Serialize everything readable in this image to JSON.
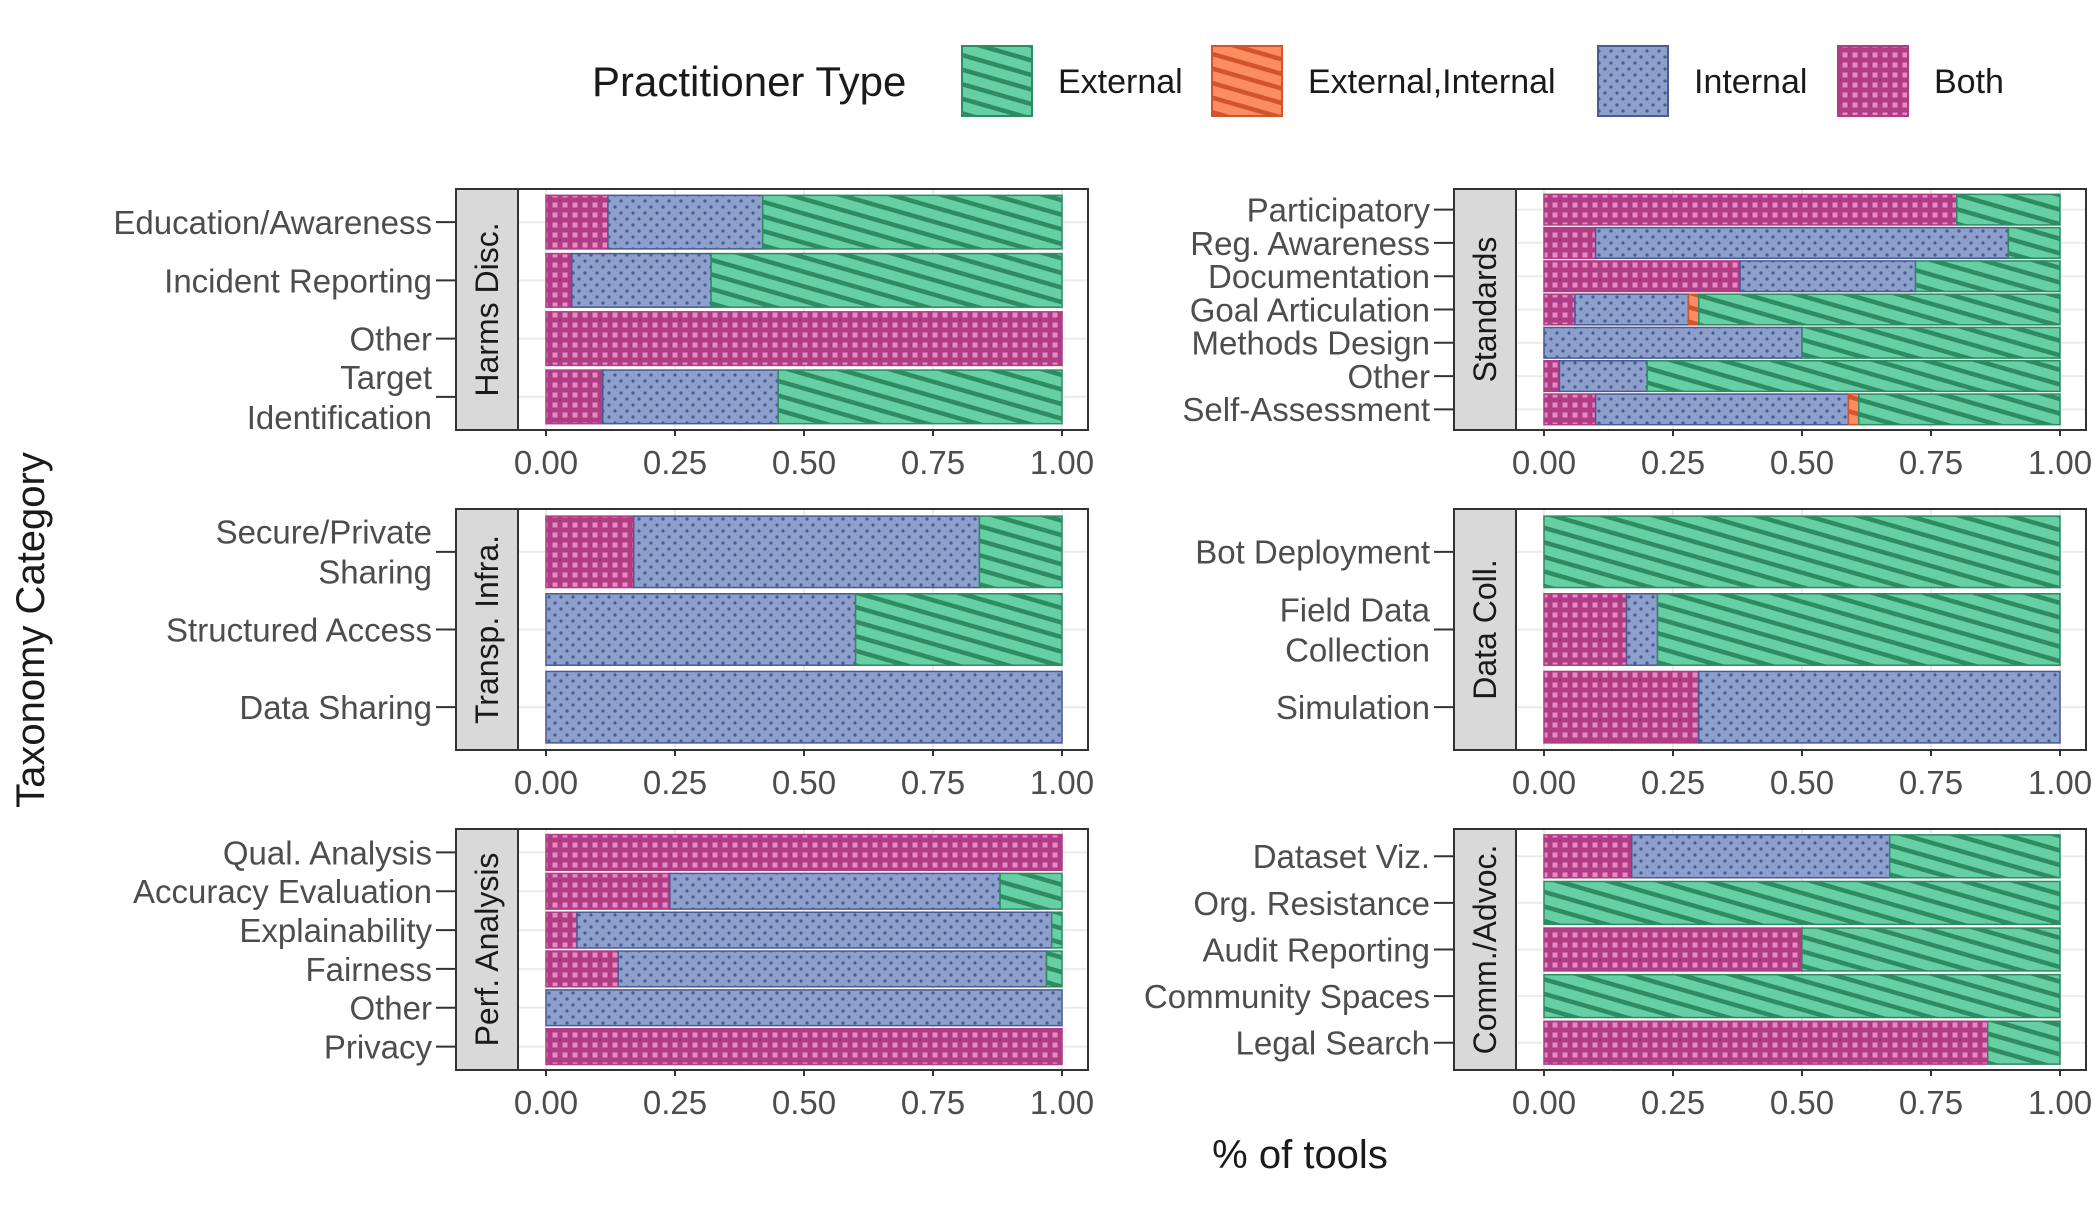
{
  "legend": {
    "title": "Practitioner Type",
    "position": "top",
    "items": [
      {
        "key": "external",
        "label": "External",
        "color": "#66cfa3",
        "pattern": "stripes",
        "pattern_color": "#2e8b62"
      },
      {
        "key": "ext_int",
        "label": "External,Internal",
        "color": "#fc8d62",
        "pattern": "stripes",
        "pattern_color": "#d1542a"
      },
      {
        "key": "internal",
        "label": "Internal",
        "color": "#8da0cb",
        "pattern": "dots",
        "pattern_color": "#4a5a95"
      },
      {
        "key": "both",
        "label": "Both",
        "color": "#e78ac3",
        "pattern": "grid",
        "pattern_color": "#b03c84"
      }
    ]
  },
  "axes": {
    "xlabel": "% of tools",
    "ylabel": "Taxonomy Category",
    "xticks": [
      "0.00",
      "0.25",
      "0.50",
      "0.75",
      "1.00"
    ]
  },
  "chart_data": [
    {
      "type": "bar",
      "stacked": true,
      "orientation": "horizontal",
      "facet": "Harms Disc.",
      "xlim": [
        0,
        1
      ],
      "categories": [
        [
          "Education/Awareness"
        ],
        [
          "Incident Reporting"
        ],
        [
          "Other"
        ],
        [
          "Target",
          "Identification"
        ]
      ],
      "series": [
        {
          "key": "both",
          "values": [
            0.12,
            0.05,
            1.0,
            0.11
          ]
        },
        {
          "key": "internal",
          "values": [
            0.3,
            0.27,
            0.0,
            0.34
          ]
        },
        {
          "key": "ext_int",
          "values": [
            0.0,
            0.0,
            0.0,
            0.0
          ]
        },
        {
          "key": "external",
          "values": [
            0.58,
            0.68,
            0.0,
            0.55
          ]
        }
      ]
    },
    {
      "type": "bar",
      "stacked": true,
      "orientation": "horizontal",
      "facet": "Standards",
      "xlim": [
        0,
        1
      ],
      "categories": [
        [
          "Participatory"
        ],
        [
          "Reg. Awareness"
        ],
        [
          "Documentation"
        ],
        [
          "Goal Articulation"
        ],
        [
          "Methods Design"
        ],
        [
          "Other"
        ],
        [
          "Self-Assessment"
        ]
      ],
      "series": [
        {
          "key": "both",
          "values": [
            0.8,
            0.1,
            0.38,
            0.06,
            0.0,
            0.03,
            0.1
          ]
        },
        {
          "key": "internal",
          "values": [
            0.0,
            0.8,
            0.34,
            0.22,
            0.5,
            0.17,
            0.49
          ]
        },
        {
          "key": "ext_int",
          "values": [
            0.0,
            0.0,
            0.0,
            0.02,
            0.0,
            0.0,
            0.02
          ]
        },
        {
          "key": "external",
          "values": [
            0.2,
            0.1,
            0.28,
            0.7,
            0.5,
            0.8,
            0.39
          ]
        }
      ]
    },
    {
      "type": "bar",
      "stacked": true,
      "orientation": "horizontal",
      "facet": "Transp. Infra.",
      "xlim": [
        0,
        1
      ],
      "categories": [
        [
          "Secure/Private",
          "Sharing"
        ],
        [
          "Structured Access"
        ],
        [
          "Data Sharing"
        ]
      ],
      "series": [
        {
          "key": "both",
          "values": [
            0.17,
            0.0,
            0.0
          ]
        },
        {
          "key": "internal",
          "values": [
            0.67,
            0.6,
            1.0
          ]
        },
        {
          "key": "ext_int",
          "values": [
            0.0,
            0.0,
            0.0
          ]
        },
        {
          "key": "external",
          "values": [
            0.16,
            0.4,
            0.0
          ]
        }
      ]
    },
    {
      "type": "bar",
      "stacked": true,
      "orientation": "horizontal",
      "facet": "Data Coll.",
      "xlim": [
        0,
        1
      ],
      "categories": [
        [
          "Bot Deployment"
        ],
        [
          "Field Data",
          "Collection"
        ],
        [
          "Simulation"
        ]
      ],
      "series": [
        {
          "key": "both",
          "values": [
            0.0,
            0.16,
            0.3
          ]
        },
        {
          "key": "internal",
          "values": [
            0.0,
            0.06,
            0.7
          ]
        },
        {
          "key": "ext_int",
          "values": [
            0.0,
            0.0,
            0.0
          ]
        },
        {
          "key": "external",
          "values": [
            1.0,
            0.78,
            0.0
          ]
        }
      ]
    },
    {
      "type": "bar",
      "stacked": true,
      "orientation": "horizontal",
      "facet": "Perf. Analysis",
      "xlim": [
        0,
        1
      ],
      "categories": [
        [
          "Qual. Analysis"
        ],
        [
          "Accuracy Evaluation"
        ],
        [
          "Explainability"
        ],
        [
          "Fairness"
        ],
        [
          "Other"
        ],
        [
          "Privacy"
        ]
      ],
      "series": [
        {
          "key": "both",
          "values": [
            1.0,
            0.24,
            0.06,
            0.14,
            0.0,
            1.0
          ]
        },
        {
          "key": "internal",
          "values": [
            0.0,
            0.64,
            0.92,
            0.83,
            1.0,
            0.0
          ]
        },
        {
          "key": "ext_int",
          "values": [
            0.0,
            0.0,
            0.0,
            0.0,
            0.0,
            0.0
          ]
        },
        {
          "key": "external",
          "values": [
            0.0,
            0.12,
            0.02,
            0.03,
            0.0,
            0.0
          ]
        }
      ]
    },
    {
      "type": "bar",
      "stacked": true,
      "orientation": "horizontal",
      "facet": "Comm./Advoc.",
      "xlim": [
        0,
        1
      ],
      "categories": [
        [
          "Dataset Viz."
        ],
        [
          "Org. Resistance"
        ],
        [
          "Audit Reporting"
        ],
        [
          "Community Spaces"
        ],
        [
          "Legal Search"
        ]
      ],
      "series": [
        {
          "key": "both",
          "values": [
            0.17,
            0.0,
            0.5,
            0.0,
            0.86
          ]
        },
        {
          "key": "internal",
          "values": [
            0.5,
            0.0,
            0.0,
            0.0,
            0.0
          ]
        },
        {
          "key": "ext_int",
          "values": [
            0.0,
            0.0,
            0.0,
            0.0,
            0.0
          ]
        },
        {
          "key": "external",
          "values": [
            0.33,
            1.0,
            0.5,
            1.0,
            0.14
          ]
        }
      ]
    }
  ]
}
